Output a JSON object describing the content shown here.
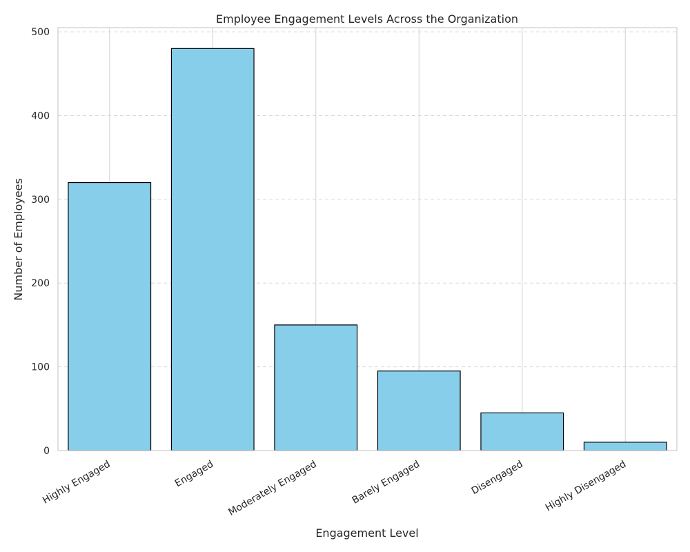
{
  "chart_data": {
    "type": "bar",
    "title": "Employee Engagement Levels Across the Organization",
    "xlabel": "Engagement Level",
    "ylabel": "Number of Employees",
    "categories": [
      "Highly Engaged",
      "Engaged",
      "Moderately Engaged",
      "Barely Engaged",
      "Disengaged",
      "Highly Disengaged"
    ],
    "values": [
      320,
      480,
      150,
      95,
      45,
      10
    ],
    "ylim": [
      0,
      505
    ],
    "yticks": [
      0,
      100,
      200,
      300,
      400,
      500
    ],
    "grid": {
      "y": "dashed",
      "x": "solid"
    },
    "colors": {
      "bar_fill": "#87ceeb",
      "bar_edge": "#000000",
      "grid": "#d9d9d9",
      "frame": "#cccccc",
      "text": "#262626"
    }
  }
}
